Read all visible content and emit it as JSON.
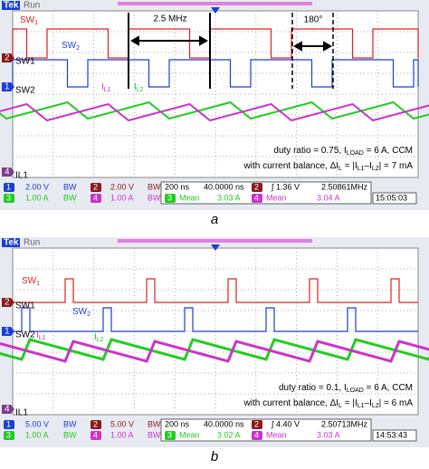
{
  "panels": [
    {
      "brand": "Tek",
      "status": "Run",
      "trace_labels": [
        [
          {
            "text": "SW"
          },
          {
            "sub": "1"
          }
        ],
        [
          {
            "text": "SW"
          },
          {
            "sub": "2"
          }
        ],
        [
          {
            "text": "I"
          },
          {
            "sub": "L1"
          }
        ],
        [
          {
            "text": "I"
          },
          {
            "sub": "L2"
          }
        ]
      ],
      "markers": [
        {
          "num": "2",
          "label": "SW1"
        },
        {
          "num": "1",
          "label": "SW2"
        },
        {
          "num": "4",
          "label": "IL1"
        }
      ],
      "annotations": {
        "freq": "2.5 MHz",
        "phase": "180°"
      },
      "note": [
        [
          {
            "text": "duty ratio = 0.75, "
          },
          {
            "text": "I"
          },
          {
            "sub": "LOAD"
          },
          {
            "text": " = 6 A, CCM"
          }
        ],
        [
          {
            "text": "with current balance, Δ"
          },
          {
            "text": "I"
          },
          {
            "sub": "L"
          },
          {
            "text": " = |"
          },
          {
            "text": "I"
          },
          {
            "sub": "L1"
          },
          {
            "text": "–"
          },
          {
            "text": "I"
          },
          {
            "sub": "L2"
          },
          {
            "text": "| = 7 mA"
          }
        ]
      ],
      "readout": {
        "row1": [
          "1",
          "2.00 V",
          "BW",
          "2",
          "2.00 V",
          "BW",
          "200 ns",
          "40.0000 ns",
          "2",
          "∫ 1.36 V",
          "2.50861MHz"
        ],
        "row2": [
          "3",
          "1.00 A",
          "BW",
          "4",
          "1.00 A",
          "BW",
          "3",
          "Mean",
          "3.03 A",
          "4",
          "Mean",
          "3.04 A",
          "15:05:03"
        ]
      },
      "caption": "a"
    },
    {
      "brand": "Tek",
      "status": "Run",
      "trace_labels": [
        [
          {
            "text": "SW"
          },
          {
            "sub": "1"
          }
        ],
        [
          {
            "text": "SW"
          },
          {
            "sub": "2"
          }
        ],
        [
          {
            "text": "I"
          },
          {
            "sub": "L1"
          }
        ],
        [
          {
            "text": "I"
          },
          {
            "sub": "L2"
          }
        ]
      ],
      "markers": [
        {
          "num": "2",
          "label": "SW1"
        },
        {
          "num": "1",
          "label": "SW2"
        },
        {
          "num": "4",
          "label": "IL1"
        }
      ],
      "note": [
        [
          {
            "text": "duty ratio = 0.1, "
          },
          {
            "text": "I"
          },
          {
            "sub": "LOAD"
          },
          {
            "text": " = 6 A, CCM"
          }
        ],
        [
          {
            "text": "with current balance, Δ"
          },
          {
            "text": "I"
          },
          {
            "sub": "L"
          },
          {
            "text": " = |"
          },
          {
            "text": "I"
          },
          {
            "sub": "L1"
          },
          {
            "text": "–"
          },
          {
            "text": "I"
          },
          {
            "sub": "L2"
          },
          {
            "text": "| = 6 mA"
          }
        ]
      ],
      "readout": {
        "row1": [
          "1",
          "5.00 V",
          "BW",
          "2",
          "5.00 V",
          "BW",
          "200 ns",
          "40.0000 ns",
          "2",
          "∫ 4.40 V",
          "2.50713MHz"
        ],
        "row2": [
          "3",
          "1.00 A",
          "BW",
          "4",
          "1.00 A",
          "BW",
          "3",
          "Mean",
          "3.02 A",
          "4",
          "Mean",
          "3.03 A",
          "14:53:43"
        ]
      },
      "caption": "b"
    }
  ]
}
